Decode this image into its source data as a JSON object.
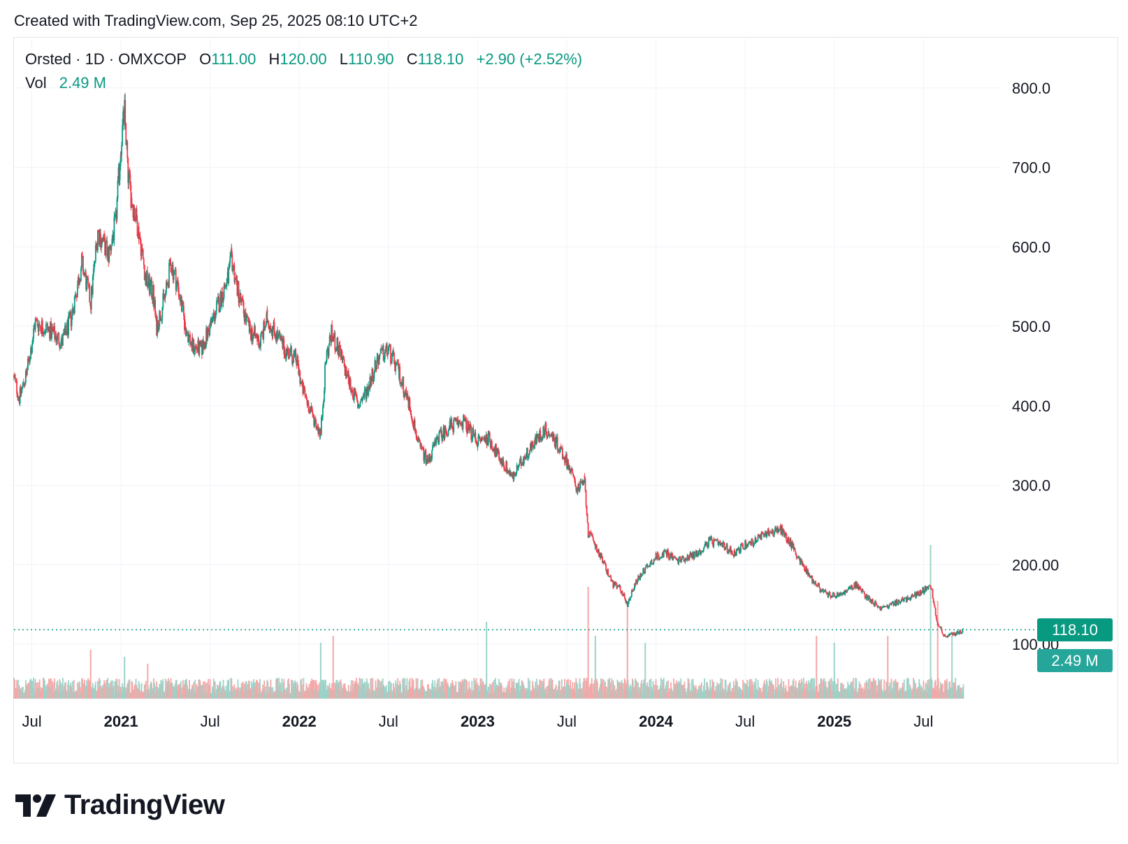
{
  "header": {
    "created_text": "Created with TradingView.com, Sep 25, 2025 08:10 UTC+2"
  },
  "legend": {
    "symbol": "Orsted · 1D · OMXCOP",
    "open_label": "O",
    "open_value": "111.00",
    "high_label": "H",
    "high_value": "120.00",
    "low_label": "L",
    "low_value": "110.90",
    "close_label": "C",
    "close_value": "118.10",
    "change": "+2.90 (+2.52%)",
    "vol_label": "Vol",
    "vol_value": "2.49 M"
  },
  "price_tags": {
    "last_price": "118.10",
    "last_volume": "2.49 M"
  },
  "branding": {
    "logo_text": "TradingView"
  },
  "colors": {
    "up": "#089981",
    "down": "#f23645",
    "grid": "#f0f3fa",
    "text": "#131722"
  },
  "chart_data": {
    "type": "candlestick",
    "title": "Orsted · 1D · OMXCOP",
    "ylim": [
      50,
      850
    ],
    "y_ticks": [
      "800.0",
      "700.0",
      "600.0",
      "500.0",
      "400.0",
      "300.0",
      "200.00",
      "100.00"
    ],
    "y_tick_values": [
      800,
      700,
      600,
      500,
      400,
      300,
      200,
      100
    ],
    "x_ticks": [
      {
        "label": "Jul",
        "date": 2020.5,
        "bold": false
      },
      {
        "label": "2021",
        "date": 2021.0,
        "bold": true
      },
      {
        "label": "Jul",
        "date": 2021.5,
        "bold": false
      },
      {
        "label": "2022",
        "date": 2022.0,
        "bold": true
      },
      {
        "label": "Jul",
        "date": 2022.5,
        "bold": false
      },
      {
        "label": "2023",
        "date": 2023.0,
        "bold": true
      },
      {
        "label": "Jul",
        "date": 2023.5,
        "bold": false
      },
      {
        "label": "2024",
        "date": 2024.0,
        "bold": true
      },
      {
        "label": "Jul",
        "date": 2024.5,
        "bold": false
      },
      {
        "label": "2025",
        "date": 2025.0,
        "bold": true
      },
      {
        "label": "Jul",
        "date": 2025.5,
        "bold": false
      }
    ],
    "x_range": [
      2020.4,
      2025.73
    ],
    "price_path": [
      [
        2020.4,
        435
      ],
      [
        2020.43,
        410
      ],
      [
        2020.47,
        440
      ],
      [
        2020.52,
        505
      ],
      [
        2020.6,
        495
      ],
      [
        2020.67,
        480
      ],
      [
        2020.72,
        510
      ],
      [
        2020.78,
        580
      ],
      [
        2020.83,
        530
      ],
      [
        2020.87,
        620
      ],
      [
        2020.93,
        590
      ],
      [
        2020.97,
        630
      ],
      [
        2021.0,
        730
      ],
      [
        2021.02,
        770
      ],
      [
        2021.04,
        690
      ],
      [
        2021.06,
        660
      ],
      [
        2021.1,
        620
      ],
      [
        2021.14,
        560
      ],
      [
        2021.18,
        540
      ],
      [
        2021.2,
        500
      ],
      [
        2021.25,
        540
      ],
      [
        2021.28,
        580
      ],
      [
        2021.32,
        550
      ],
      [
        2021.36,
        500
      ],
      [
        2021.4,
        475
      ],
      [
        2021.45,
        470
      ],
      [
        2021.5,
        500
      ],
      [
        2021.55,
        530
      ],
      [
        2021.6,
        560
      ],
      [
        2021.62,
        585
      ],
      [
        2021.66,
        540
      ],
      [
        2021.72,
        495
      ],
      [
        2021.78,
        480
      ],
      [
        2021.82,
        510
      ],
      [
        2021.87,
        490
      ],
      [
        2021.92,
        470
      ],
      [
        2021.98,
        460
      ],
      [
        2022.02,
        420
      ],
      [
        2022.07,
        390
      ],
      [
        2022.12,
        365
      ],
      [
        2022.15,
        460
      ],
      [
        2022.18,
        490
      ],
      [
        2022.22,
        470
      ],
      [
        2022.28,
        430
      ],
      [
        2022.33,
        400
      ],
      [
        2022.38,
        420
      ],
      [
        2022.44,
        460
      ],
      [
        2022.5,
        470
      ],
      [
        2022.56,
        440
      ],
      [
        2022.62,
        400
      ],
      [
        2022.67,
        350
      ],
      [
        2022.72,
        330
      ],
      [
        2022.78,
        360
      ],
      [
        2022.85,
        375
      ],
      [
        2022.92,
        380
      ],
      [
        2023.0,
        355
      ],
      [
        2023.06,
        360
      ],
      [
        2023.12,
        335
      ],
      [
        2023.2,
        310
      ],
      [
        2023.26,
        335
      ],
      [
        2023.32,
        355
      ],
      [
        2023.38,
        370
      ],
      [
        2023.44,
        355
      ],
      [
        2023.5,
        330
      ],
      [
        2023.56,
        295
      ],
      [
        2023.6,
        305
      ],
      [
        2023.62,
        240
      ],
      [
        2023.66,
        225
      ],
      [
        2023.7,
        205
      ],
      [
        2023.76,
        175
      ],
      [
        2023.8,
        170
      ],
      [
        2023.84,
        150
      ],
      [
        2023.88,
        175
      ],
      [
        2023.94,
        195
      ],
      [
        2024.0,
        210
      ],
      [
        2024.06,
        215
      ],
      [
        2024.12,
        205
      ],
      [
        2024.18,
        210
      ],
      [
        2024.24,
        215
      ],
      [
        2024.3,
        230
      ],
      [
        2024.36,
        225
      ],
      [
        2024.44,
        215
      ],
      [
        2024.5,
        225
      ],
      [
        2024.56,
        230
      ],
      [
        2024.62,
        240
      ],
      [
        2024.7,
        245
      ],
      [
        2024.76,
        225
      ],
      [
        2024.82,
        200
      ],
      [
        2024.88,
        180
      ],
      [
        2024.94,
        165
      ],
      [
        2025.0,
        160
      ],
      [
        2025.06,
        165
      ],
      [
        2025.12,
        175
      ],
      [
        2025.18,
        160
      ],
      [
        2025.26,
        145
      ],
      [
        2025.32,
        150
      ],
      [
        2025.38,
        155
      ],
      [
        2025.44,
        160
      ],
      [
        2025.5,
        168
      ],
      [
        2025.54,
        175
      ],
      [
        2025.58,
        125
      ],
      [
        2025.62,
        110
      ],
      [
        2025.66,
        112
      ],
      [
        2025.7,
        115
      ],
      [
        2025.725,
        118
      ]
    ],
    "last": {
      "open": 111.0,
      "high": 120.0,
      "low": 110.9,
      "close": 118.1,
      "volume_millions": 2.49
    },
    "volume_spikes_millions": [
      [
        2020.83,
        7
      ],
      [
        2021.02,
        6
      ],
      [
        2021.15,
        5
      ],
      [
        2022.12,
        8
      ],
      [
        2022.19,
        9
      ],
      [
        2023.05,
        11
      ],
      [
        2023.62,
        16
      ],
      [
        2023.66,
        9
      ],
      [
        2023.84,
        13
      ],
      [
        2023.94,
        8
      ],
      [
        2024.9,
        9
      ],
      [
        2025.0,
        8
      ],
      [
        2025.3,
        9
      ],
      [
        2025.54,
        22
      ],
      [
        2025.58,
        14
      ],
      [
        2025.66,
        9
      ]
    ]
  }
}
